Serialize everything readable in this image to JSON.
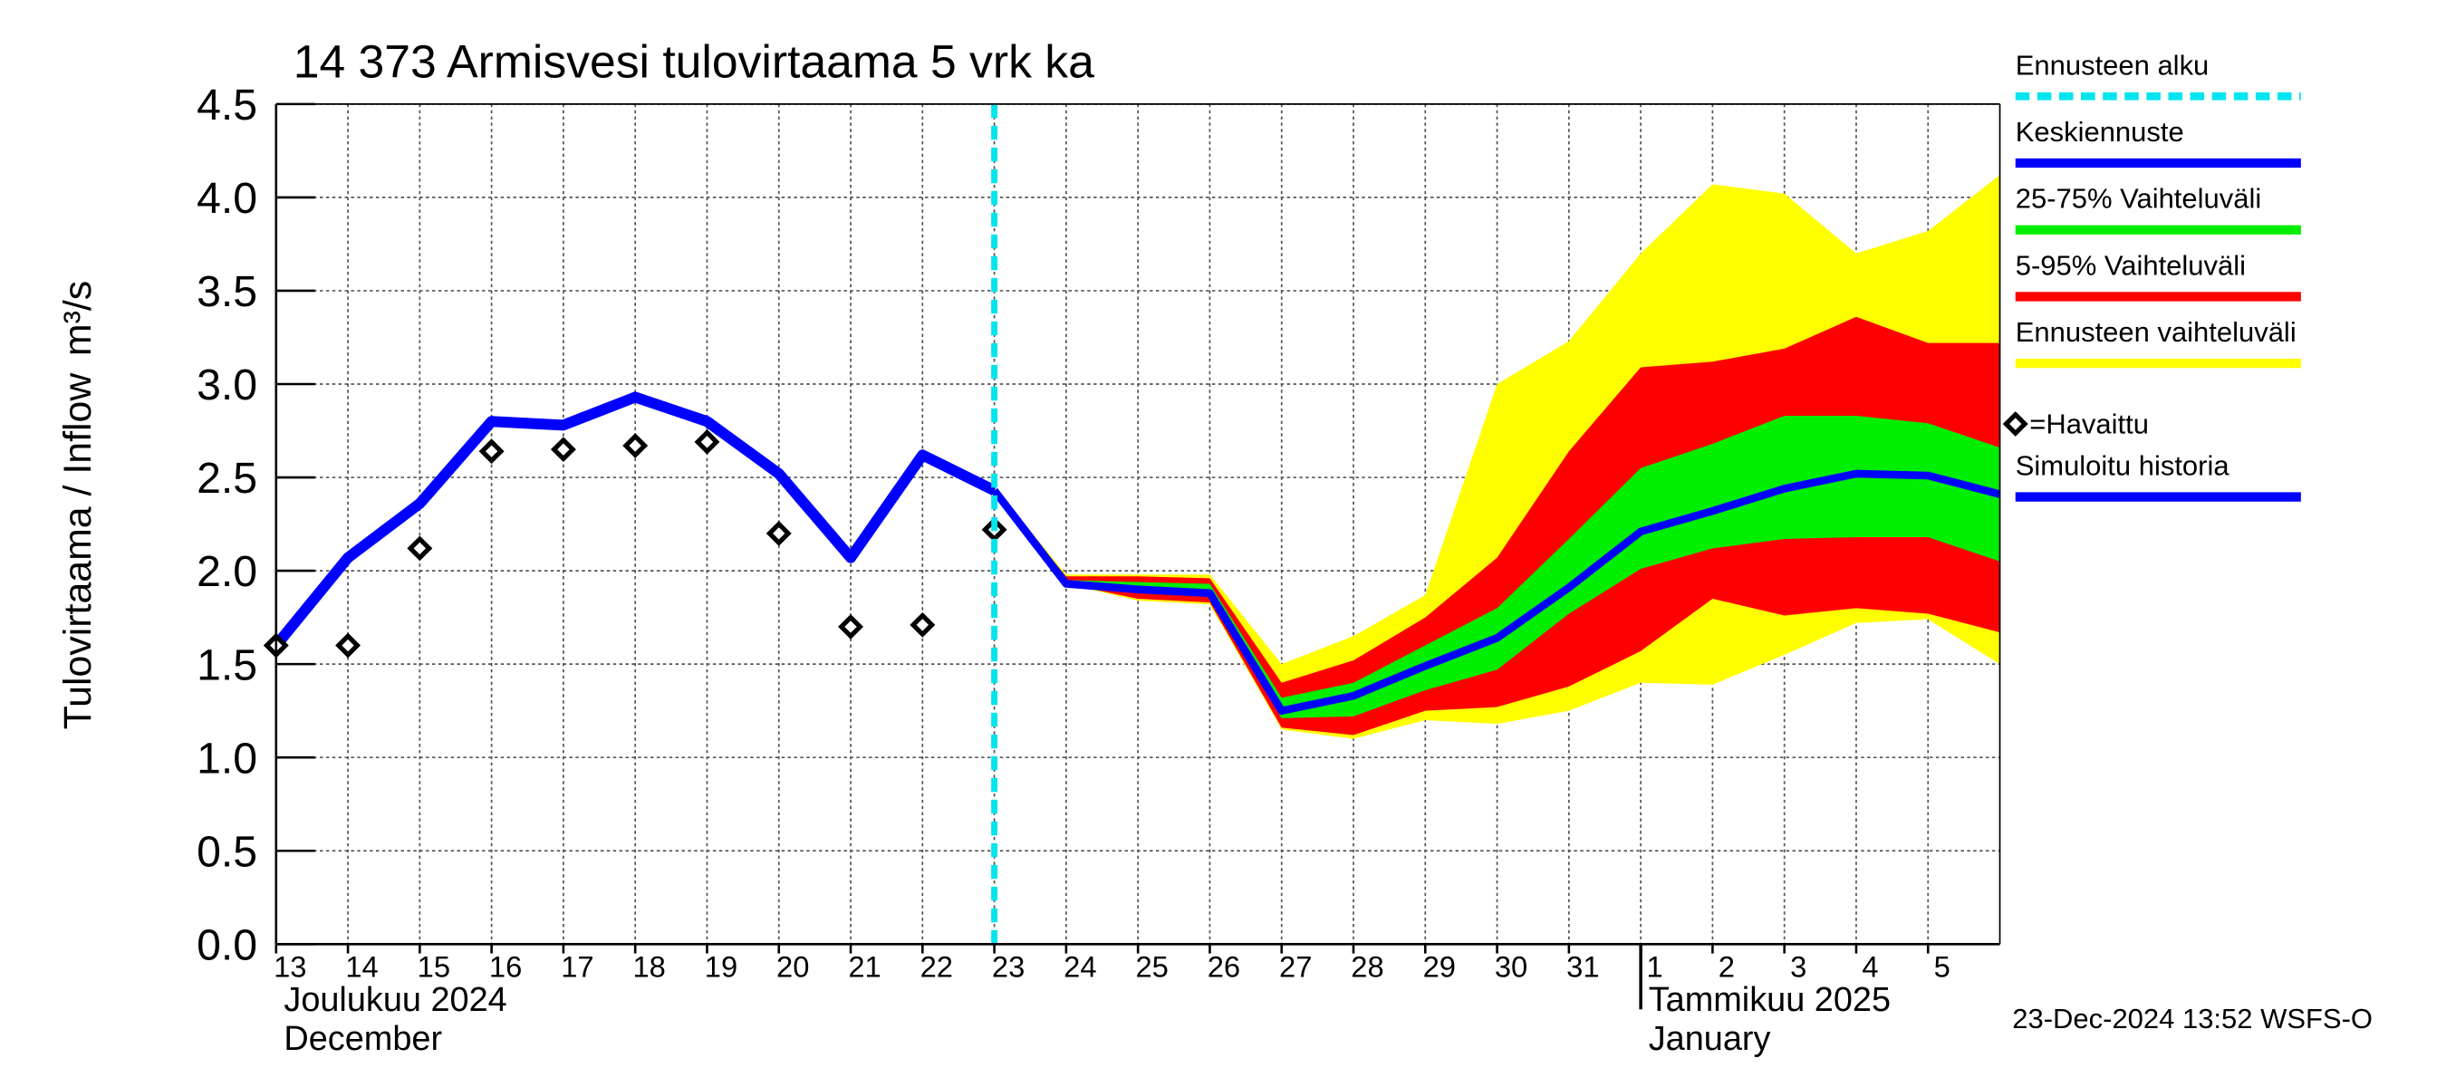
{
  "chart_data": {
    "type": "forecast",
    "title": "14 373 Armisvesi tulovirtaama 5 vrk ka",
    "y_label": "Tulovirtaama / Inflow",
    "y_unit": "m³/s",
    "footer": "23-Dec-2024 13:52 WSFS-O",
    "xlim": [
      0,
      24
    ],
    "ylim": [
      0,
      4.5
    ],
    "yticks": [
      {
        "value": 0,
        "label": "0.0"
      },
      {
        "value": 0.5,
        "label": "0.5"
      },
      {
        "value": 1,
        "label": "1.0"
      },
      {
        "value": 1.5,
        "label": "1.5"
      },
      {
        "value": 2,
        "label": "2.0"
      },
      {
        "value": 2.5,
        "label": "2.5"
      },
      {
        "value": 3,
        "label": "3.0"
      },
      {
        "value": 3.5,
        "label": "3.5"
      },
      {
        "value": 4,
        "label": "4.0"
      },
      {
        "value": 4.5,
        "label": "4.5"
      }
    ],
    "xticks": [
      {
        "value": 0,
        "label": "13"
      },
      {
        "value": 1,
        "label": "14"
      },
      {
        "value": 2,
        "label": "15"
      },
      {
        "value": 3,
        "label": "16"
      },
      {
        "value": 4,
        "label": "17"
      },
      {
        "value": 5,
        "label": "18"
      },
      {
        "value": 6,
        "label": "19"
      },
      {
        "value": 7,
        "label": "20"
      },
      {
        "value": 8,
        "label": "21"
      },
      {
        "value": 9,
        "label": "22"
      },
      {
        "value": 10,
        "label": "23"
      },
      {
        "value": 11,
        "label": "24"
      },
      {
        "value": 12,
        "label": "25"
      },
      {
        "value": 13,
        "label": "26"
      },
      {
        "value": 14,
        "label": "27"
      },
      {
        "value": 15,
        "label": "28"
      },
      {
        "value": 16,
        "label": "29"
      },
      {
        "value": 17,
        "label": "30"
      },
      {
        "value": 18,
        "label": "31"
      },
      {
        "value": 19,
        "label": "1"
      },
      {
        "value": 20,
        "label": "2"
      },
      {
        "value": 21,
        "label": "3"
      },
      {
        "value": 22,
        "label": "4"
      },
      {
        "value": 23,
        "label": "5"
      }
    ],
    "month_labels": [
      {
        "label": "Joulukuu  2024",
        "sub": "December",
        "x": 0
      },
      {
        "label": "Tammikuu  2025",
        "sub": "January",
        "x": 19
      }
    ],
    "grid": true,
    "forecast_start": {
      "name": "Ennusteen alku",
      "color": "#00e5ee",
      "x": 10
    },
    "series": [
      {
        "name": "Ennusteen vaihteluväli",
        "kind": "band",
        "color": "#ffff00",
        "x": [
          10,
          11,
          12,
          13,
          14,
          15,
          16,
          17,
          18,
          19,
          20,
          21,
          22,
          23,
          24
        ],
        "high": [
          2.45,
          1.98,
          1.98,
          1.98,
          1.5,
          1.65,
          1.87,
          3.0,
          3.23,
          3.7,
          4.07,
          4.02,
          3.7,
          3.82,
          4.12
        ],
        "low": [
          2.43,
          1.93,
          1.84,
          1.82,
          1.15,
          1.1,
          1.2,
          1.18,
          1.25,
          1.4,
          1.39,
          1.55,
          1.72,
          1.74,
          1.5
        ]
      },
      {
        "name": "5-95% Vaihteluväli",
        "kind": "band",
        "color": "#ff0000",
        "x": [
          10,
          11,
          12,
          13,
          14,
          15,
          16,
          17,
          18,
          19,
          20,
          21,
          22,
          23,
          24
        ],
        "high": [
          2.43,
          1.97,
          1.97,
          1.96,
          1.4,
          1.52,
          1.75,
          2.07,
          2.64,
          3.09,
          3.12,
          3.19,
          3.36,
          3.22,
          3.22
        ],
        "low": [
          2.43,
          1.93,
          1.85,
          1.83,
          1.16,
          1.12,
          1.25,
          1.27,
          1.38,
          1.57,
          1.85,
          1.76,
          1.8,
          1.77,
          1.67
        ]
      },
      {
        "name": "25-75% Vaihteluväli",
        "kind": "band",
        "color": "#00ee00",
        "x": [
          10,
          11,
          12,
          13,
          14,
          15,
          16,
          17,
          18,
          19,
          20,
          21,
          22,
          23,
          24
        ],
        "high": [
          2.43,
          1.95,
          1.94,
          1.93,
          1.32,
          1.4,
          1.6,
          1.8,
          2.17,
          2.55,
          2.68,
          2.83,
          2.83,
          2.79,
          2.66
        ],
        "low": [
          2.43,
          1.93,
          1.88,
          1.86,
          1.21,
          1.22,
          1.36,
          1.47,
          1.77,
          2.01,
          2.12,
          2.17,
          2.18,
          2.18,
          2.05
        ]
      },
      {
        "name": "Simuloitu historia",
        "kind": "line",
        "color": "#0000ff",
        "width": 7,
        "x": [
          0,
          1,
          2,
          3,
          4,
          5,
          6,
          7,
          8,
          9,
          10
        ],
        "values": [
          1.6,
          2.07,
          2.36,
          2.8,
          2.78,
          2.93,
          2.8,
          2.52,
          2.07,
          2.62,
          2.43
        ]
      },
      {
        "name": "Keskiennuste",
        "kind": "line",
        "color": "#0000ff",
        "width": 5,
        "x": [
          10,
          11,
          12,
          13,
          14,
          15,
          16,
          17,
          18,
          19,
          20,
          21,
          22,
          23,
          24
        ],
        "values": [
          2.43,
          1.93,
          1.9,
          1.88,
          1.25,
          1.33,
          1.49,
          1.64,
          1.91,
          2.21,
          2.32,
          2.44,
          2.52,
          2.51,
          2.41
        ]
      },
      {
        "name": "=Havaittu",
        "kind": "scatter",
        "color": "#000000",
        "x": [
          0,
          1,
          2,
          3,
          4,
          5,
          6,
          7,
          8,
          9,
          10
        ],
        "values": [
          1.6,
          1.6,
          2.12,
          2.64,
          2.65,
          2.67,
          2.69,
          2.2,
          1.7,
          1.71,
          2.22
        ]
      }
    ]
  }
}
